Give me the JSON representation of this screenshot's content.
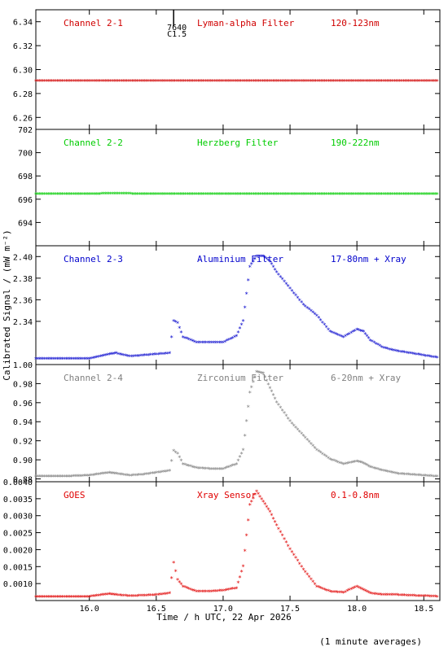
{
  "chart_data": [
    {
      "type": "scatter",
      "name": "Channel 2-1",
      "label_filter": "Lyman-alpha Filter",
      "label_band": "120-123nm",
      "color": "#d00000",
      "ylim": [
        6.25,
        6.35
      ],
      "yticks": [
        "6.26",
        "6.28",
        "6.30",
        "6.32",
        "6.34"
      ],
      "x": [
        15.6,
        15.8,
        16.0,
        16.2,
        16.4,
        16.6,
        16.8,
        17.0,
        17.2,
        17.4,
        17.6,
        17.8,
        18.0,
        18.2,
        18.4,
        18.6
      ],
      "y": [
        6.29,
        6.29,
        6.29,
        6.29,
        6.29,
        6.29,
        6.29,
        6.29,
        6.29,
        6.29,
        6.29,
        6.29,
        6.29,
        6.29,
        6.29,
        6.29
      ],
      "annotation": {
        "x": 16.63,
        "line1": "7640",
        "line2": "C1.5"
      }
    },
    {
      "type": "scatter",
      "name": "Channel 2-2",
      "label_filter": "Herzberg Filter",
      "label_band": "190-222nm",
      "color": "#00cc00",
      "ylim": [
        692,
        702
      ],
      "yticks": [
        "694",
        "696",
        "698",
        "700",
        "702"
      ],
      "x": [
        15.6,
        15.8,
        16.0,
        16.2,
        16.4,
        16.6,
        16.8,
        17.0,
        17.2,
        17.4,
        17.6,
        17.8,
        18.0,
        18.2,
        18.4,
        18.6
      ],
      "y": [
        696.4,
        696.4,
        696.4,
        696.45,
        696.4,
        696.4,
        696.4,
        696.4,
        696.4,
        696.4,
        696.4,
        696.4,
        696.4,
        696.4,
        696.4,
        696.4
      ]
    },
    {
      "type": "scatter",
      "name": "Channel 2-3",
      "label_filter": "Aluminium Filter",
      "label_band": "17-80nm + Xray",
      "color": "#0000cc",
      "ylim": [
        2.3,
        2.41
      ],
      "yticks": [
        "2.34",
        "2.36",
        "2.38",
        "2.40"
      ],
      "x": [
        15.6,
        15.8,
        16.0,
        16.15,
        16.2,
        16.3,
        16.4,
        16.5,
        16.6,
        16.63,
        16.66,
        16.7,
        16.8,
        16.9,
        17.0,
        17.1,
        17.15,
        17.2,
        17.25,
        17.3,
        17.35,
        17.4,
        17.5,
        17.6,
        17.7,
        17.8,
        17.9,
        18.0,
        18.05,
        18.1,
        18.2,
        18.3,
        18.4,
        18.5,
        18.6
      ],
      "y": [
        2.305,
        2.305,
        2.305,
        2.309,
        2.31,
        2.307,
        2.308,
        2.309,
        2.31,
        2.34,
        2.338,
        2.325,
        2.32,
        2.32,
        2.32,
        2.326,
        2.34,
        2.39,
        2.4,
        2.4,
        2.395,
        2.385,
        2.37,
        2.355,
        2.345,
        2.33,
        2.325,
        2.332,
        2.33,
        2.322,
        2.315,
        2.312,
        2.31,
        2.308,
        2.306
      ]
    },
    {
      "type": "scatter",
      "name": "Channel 2-4",
      "label_filter": "Zirconium Filter",
      "label_band": "6-20nm + Xray",
      "color": "#808080",
      "ylim": [
        0.877,
        1.0
      ],
      "yticks": [
        "0.88",
        "0.90",
        "0.92",
        "0.94",
        "0.96",
        "0.98",
        "1.00"
      ],
      "x": [
        15.6,
        15.8,
        16.0,
        16.15,
        16.2,
        16.3,
        16.4,
        16.5,
        16.6,
        16.63,
        16.66,
        16.7,
        16.8,
        16.9,
        17.0,
        17.1,
        17.15,
        17.2,
        17.25,
        17.3,
        17.35,
        17.4,
        17.5,
        17.6,
        17.7,
        17.8,
        17.9,
        18.0,
        18.05,
        18.1,
        18.2,
        18.3,
        18.4,
        18.5,
        18.6
      ],
      "y": [
        0.882,
        0.882,
        0.883,
        0.886,
        0.885,
        0.883,
        0.884,
        0.886,
        0.888,
        0.909,
        0.906,
        0.895,
        0.891,
        0.89,
        0.89,
        0.895,
        0.91,
        0.97,
        0.992,
        0.99,
        0.975,
        0.96,
        0.94,
        0.925,
        0.91,
        0.9,
        0.895,
        0.898,
        0.896,
        0.892,
        0.888,
        0.885,
        0.884,
        0.883,
        0.882
      ]
    },
    {
      "type": "scatter",
      "name": "GOES",
      "label_filter": "Xray Sensor",
      "label_band": "0.1-0.8nm",
      "color": "#e00000",
      "ylim": [
        0.0005,
        0.004
      ],
      "yticks": [
        "0.0010",
        "0.0015",
        "0.0020",
        "0.0025",
        "0.0030",
        "0.0035",
        "0.0040"
      ],
      "x": [
        15.6,
        15.8,
        16.0,
        16.15,
        16.2,
        16.3,
        16.4,
        16.5,
        16.6,
        16.63,
        16.66,
        16.7,
        16.8,
        16.9,
        17.0,
        17.1,
        17.15,
        17.2,
        17.25,
        17.3,
        17.35,
        17.4,
        17.5,
        17.6,
        17.7,
        17.8,
        17.9,
        18.0,
        18.05,
        18.1,
        18.2,
        18.3,
        18.4,
        18.5,
        18.6
      ],
      "y": [
        0.0006,
        0.0006,
        0.0006,
        0.00068,
        0.00065,
        0.00062,
        0.00063,
        0.00065,
        0.0007,
        0.0016,
        0.0011,
        0.0009,
        0.00075,
        0.00075,
        0.00078,
        0.00085,
        0.0015,
        0.0033,
        0.0037,
        0.0034,
        0.0031,
        0.0027,
        0.002,
        0.0014,
        0.0009,
        0.00075,
        0.00072,
        0.0009,
        0.0008,
        0.0007,
        0.00065,
        0.00065,
        0.00063,
        0.00062,
        0.0006
      ]
    }
  ],
  "x_axis": {
    "xlim": [
      15.6,
      18.62
    ],
    "ticks": [
      "16.0",
      "16.5",
      "17.0",
      "17.5",
      "18.0",
      "18.5"
    ],
    "label": "Time / h UTC, 22 Apr 2026"
  },
  "y_axis": {
    "label": "Calibrated Signal / (mW m⁻²)"
  },
  "footnote": "(1 minute averages)"
}
